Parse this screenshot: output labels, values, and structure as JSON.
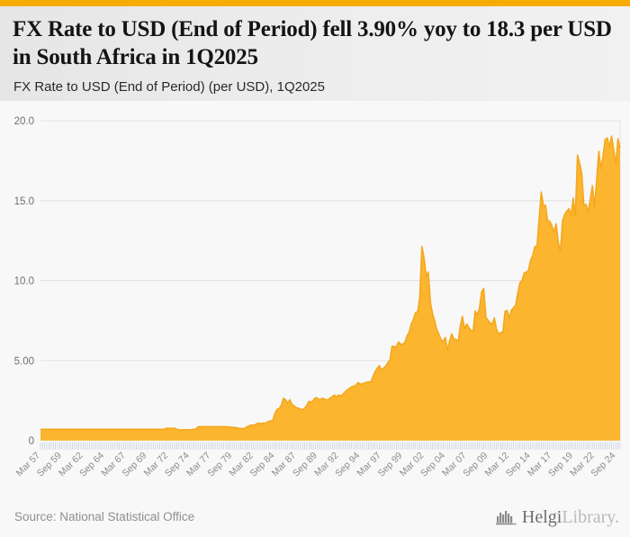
{
  "page": {
    "accent_bar_color": "#F6AC00",
    "background_color": "#f8f8f8"
  },
  "header": {
    "title": "FX Rate to USD (End of Period) fell 3.90% yoy to 18.3 per USD in South Africa in 1Q2025",
    "subtitle": "FX Rate to USD (End of Period) (per USD), 1Q2025"
  },
  "footer": {
    "source": "Source: National Statistical Office",
    "logo_icon": "bar-chart-building-icon",
    "logo_text_primary": "Helgi",
    "logo_text_secondary": "Library."
  },
  "chart_data": {
    "type": "area",
    "title": "FX Rate to USD (End of Period) (per USD), 1Q2025",
    "ylabel": "",
    "xlabel": "",
    "unit": "ZAR per USD",
    "frequency": "quarterly",
    "x_start": "Mar 1957",
    "x_end": "Mar 2025",
    "ylim": [
      0,
      20
    ],
    "grid": "horizontal",
    "legend": "none",
    "fill_color": "#FBB52F",
    "line_color": "#F4A81E",
    "grid_color": "#e2e2e2",
    "tick_color": "#c6cfe2",
    "axis_label_color": "#8c8c8c",
    "y_label_color": "#707070",
    "y_ticks": [
      {
        "value": 20,
        "label": "20.0"
      },
      {
        "value": 15,
        "label": "15.0"
      },
      {
        "value": 10,
        "label": "10.0"
      },
      {
        "value": 5,
        "label": "5.00"
      },
      {
        "value": 0,
        "label": "0"
      }
    ],
    "x_label_every": 10,
    "x_tick_labels": [
      "Mar 57",
      "Sep 59",
      "Mar 62",
      "Sep 64",
      "Mar 67",
      "Sep 69",
      "Mar 72",
      "Sep 74",
      "Mar 77",
      "Sep 79",
      "Mar 82",
      "Sep 84",
      "Mar 87",
      "Sep 89",
      "Mar 92",
      "Sep 94",
      "Mar 97",
      "Sep 99",
      "Mar 02",
      "Sep 04",
      "Mar 07",
      "Sep 09",
      "Mar 12",
      "Sep 14",
      "Mar 17",
      "Sep 19",
      "Mar 22",
      "Sep 24"
    ],
    "values": [
      0.71,
      0.71,
      0.71,
      0.71,
      0.71,
      0.71,
      0.71,
      0.71,
      0.71,
      0.71,
      0.71,
      0.71,
      0.71,
      0.71,
      0.71,
      0.71,
      0.71,
      0.71,
      0.71,
      0.71,
      0.71,
      0.71,
      0.71,
      0.71,
      0.71,
      0.71,
      0.71,
      0.71,
      0.71,
      0.71,
      0.71,
      0.71,
      0.71,
      0.71,
      0.71,
      0.71,
      0.71,
      0.71,
      0.71,
      0.71,
      0.71,
      0.71,
      0.71,
      0.71,
      0.71,
      0.71,
      0.71,
      0.71,
      0.71,
      0.71,
      0.71,
      0.71,
      0.71,
      0.71,
      0.71,
      0.71,
      0.71,
      0.71,
      0.71,
      0.77,
      0.77,
      0.77,
      0.77,
      0.77,
      0.71,
      0.67,
      0.67,
      0.68,
      0.68,
      0.68,
      0.66,
      0.69,
      0.71,
      0.73,
      0.87,
      0.87,
      0.87,
      0.87,
      0.87,
      0.87,
      0.87,
      0.87,
      0.87,
      0.87,
      0.87,
      0.87,
      0.87,
      0.87,
      0.85,
      0.84,
      0.83,
      0.83,
      0.8,
      0.77,
      0.76,
      0.75,
      0.78,
      0.87,
      0.93,
      0.97,
      0.96,
      1.01,
      1.09,
      1.07,
      1.09,
      1.09,
      1.11,
      1.2,
      1.23,
      1.27,
      1.7,
      1.96,
      2.0,
      2.19,
      2.65,
      2.55,
      2.35,
      2.55,
      2.26,
      2.18,
      2.06,
      2.03,
      1.97,
      1.93,
      2.03,
      2.21,
      2.46,
      2.38,
      2.52,
      2.68,
      2.65,
      2.54,
      2.64,
      2.62,
      2.55,
      2.56,
      2.67,
      2.76,
      2.84,
      2.74,
      2.86,
      2.77,
      2.92,
      3.05,
      3.17,
      3.27,
      3.36,
      3.4,
      3.46,
      3.63,
      3.55,
      3.54,
      3.6,
      3.65,
      3.67,
      3.65,
      3.99,
      4.3,
      4.52,
      4.68,
      4.42,
      4.53,
      4.65,
      4.87,
      5.03,
      5.9,
      5.88,
      5.86,
      6.17,
      6.03,
      6.02,
      6.15,
      6.54,
      6.78,
      7.29,
      7.57,
      8.0,
      8.06,
      8.96,
      12.13,
      11.4,
      10.27,
      10.54,
      8.64,
      7.91,
      7.49,
      6.93,
      6.64,
      6.31,
      6.2,
      6.45,
      5.63,
      6.24,
      6.67,
      6.35,
      6.33,
      6.18,
      7.15,
      7.77,
      7.0,
      7.29,
      7.07,
      6.89,
      6.81,
      8.1,
      7.83,
      8.27,
      9.3,
      9.51,
      7.72,
      7.52,
      7.36,
      7.28,
      7.67,
      6.97,
      6.63,
      6.77,
      6.76,
      8.09,
      8.13,
      7.67,
      8.16,
      8.31,
      8.47,
      9.23,
      9.88,
      10.01,
      10.49,
      10.52,
      10.64,
      11.29,
      11.57,
      12.13,
      12.17,
      13.83,
      15.54,
      14.71,
      14.71,
      13.72,
      13.73,
      13.41,
      13.06,
      13.56,
      12.38,
      11.83,
      13.73,
      14.15,
      14.35,
      14.5,
      14.08,
      15.16,
      14.0,
      17.86,
      17.33,
      16.75,
      14.69,
      14.77,
      14.27,
      15.06,
      15.94,
      14.6,
      16.27,
      18.09,
      17.0,
      17.79,
      18.83,
      18.92,
      18.36,
      19.04,
      18.19,
      17.27,
      18.87,
      18.3
    ]
  }
}
